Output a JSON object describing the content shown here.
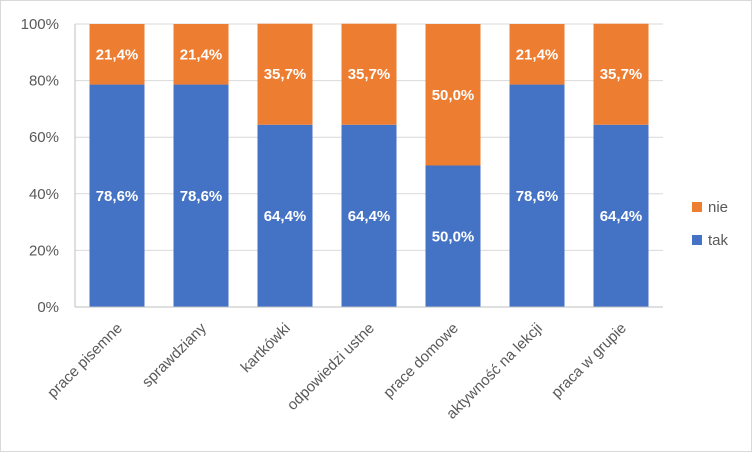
{
  "chart_data": {
    "type": "bar",
    "stacked": true,
    "percent": true,
    "categories": [
      "prace pisemne",
      "sprawdziany",
      "kartkówki",
      "odpowiedzi ustne",
      "prace domowe",
      "aktywność na lekcji",
      "praca w grupie"
    ],
    "series": [
      {
        "name": "tak",
        "color": "#4472C4",
        "values": [
          78.6,
          78.6,
          64.4,
          64.4,
          50.0,
          78.6,
          64.4
        ],
        "labels": [
          "78,6%",
          "78,6%",
          "64,4%",
          "64,4%",
          "50,0%",
          "78,6%",
          "64,4%"
        ]
      },
      {
        "name": "nie",
        "color": "#ED7D31",
        "values": [
          21.4,
          21.4,
          35.7,
          35.7,
          50.0,
          21.4,
          35.7
        ],
        "labels": [
          "21,4%",
          "21,4%",
          "35,7%",
          "35,7%",
          "50,0%",
          "21,4%",
          "35,7%"
        ]
      }
    ],
    "ylim": [
      0,
      100
    ],
    "yticks": [
      "0%",
      "20%",
      "40%",
      "60%",
      "80%",
      "100%"
    ],
    "grid": true,
    "legend": "right",
    "legend_order": [
      "nie",
      "tak"
    ]
  }
}
